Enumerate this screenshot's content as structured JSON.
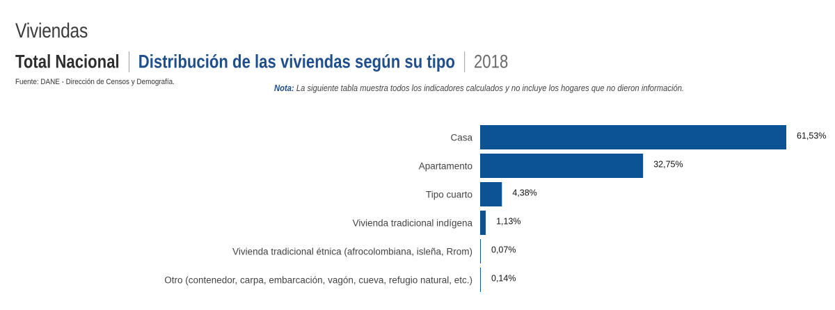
{
  "header": {
    "title": "Viviendas",
    "scope": "Total Nacional",
    "topic": "Distribución de las viviendas según su tipo",
    "year": "2018",
    "source": "Fuente: DANE - Dirección de Censos y Demografía.",
    "note_label": "Nota:",
    "note_text": " La siguiente tabla muestra todos los indicadores calculados y no incluye los hogares que no dieron información."
  },
  "colors": {
    "bar": "#0b5394",
    "accent": "#1f4e8c"
  },
  "chart_data": {
    "type": "bar",
    "orientation": "horizontal",
    "title": "Distribución de las viviendas según su tipo",
    "xlabel": "",
    "ylabel": "",
    "unit": "%",
    "grid": false,
    "legend": "none",
    "categories": [
      "Casa",
      "Apartamento",
      "Tipo cuarto",
      "Vivienda tradicional indígena",
      "Vivienda tradicional étnica (afrocolombiana, isleña, Rrom)",
      "Otro (contenedor, carpa, embarcación, vagón, cueva, refugio natural, etc.)"
    ],
    "values": [
      61.53,
      32.75,
      4.38,
      1.13,
      0.07,
      0.14
    ],
    "value_labels": [
      "61,53%",
      "32,75%",
      "4,38%",
      "1,13%",
      "0,07%",
      "0,14%"
    ],
    "xlim": [
      0,
      61.53
    ]
  }
}
